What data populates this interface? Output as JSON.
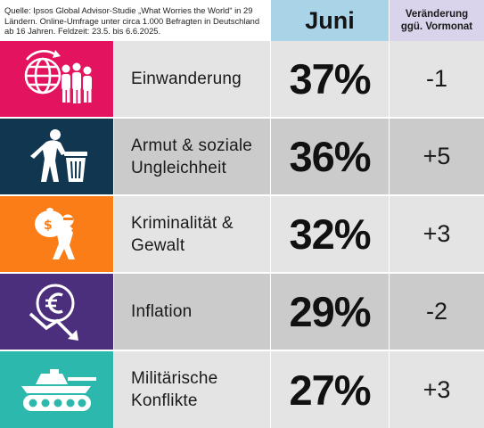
{
  "source_note": "Quelle: Ipsos Global Advisor-Studie „What Worries the World“ in 29 Ländern. Online-Umfrage unter circa 1.000 Befragten in Deutschland ab 16 Jahren. Feldzeit: 23.5. bis 6.6.2025.",
  "header": {
    "juni": "Juni",
    "change_line1": "Veränderung",
    "change_line2": "ggü. Vormonat"
  },
  "rows": [
    {
      "label": "Einwanderung",
      "pct": "37%",
      "change": "-1",
      "icon": "migration-globe-icon",
      "color": "#e3135f"
    },
    {
      "label": "Armut & soziale Ungleichheit",
      "pct": "36%",
      "change": "+5",
      "icon": "poverty-trash-icon",
      "color": "#113650"
    },
    {
      "label": "Kriminalität & Gewalt",
      "pct": "32%",
      "change": "+3",
      "icon": "thief-icon",
      "color": "#fa7d17"
    },
    {
      "label": "Inflation",
      "pct": "29%",
      "change": "-2",
      "icon": "euro-decline-icon",
      "color": "#4c2f7c"
    },
    {
      "label": "Militärische Konflikte",
      "pct": "27%",
      "change": "+3",
      "icon": "tank-icon",
      "color": "#2db8ad"
    }
  ],
  "chart_data": {
    "type": "table",
    "columns": [
      "Juni",
      "Veränderung ggü. Vormonat"
    ],
    "categories": [
      "Einwanderung",
      "Armut & soziale Ungleichheit",
      "Kriminalität & Gewalt",
      "Inflation",
      "Militärische Konflikte"
    ],
    "series": [
      {
        "name": "Juni",
        "values": [
          37,
          36,
          32,
          29,
          27
        ]
      },
      {
        "name": "Veränderung ggü. Vormonat",
        "values": [
          -1,
          5,
          3,
          -2,
          3
        ]
      }
    ]
  }
}
